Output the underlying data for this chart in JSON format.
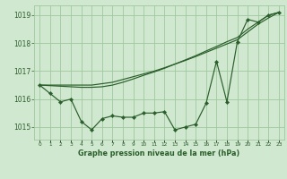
{
  "title": "Graphe pression niveau de la mer (hPa)",
  "background_color": "#d0e8d0",
  "grid_color": "#a0c8a0",
  "line_color": "#2a5e2a",
  "x_labels": [
    "0",
    "1",
    "2",
    "3",
    "4",
    "5",
    "6",
    "7",
    "8",
    "9",
    "10",
    "11",
    "12",
    "13",
    "14",
    "15",
    "16",
    "17",
    "18",
    "19",
    "20",
    "21",
    "22",
    "23"
  ],
  "hours": [
    0,
    1,
    2,
    3,
    4,
    5,
    6,
    7,
    8,
    9,
    10,
    11,
    12,
    13,
    14,
    15,
    16,
    17,
    18,
    19,
    20,
    21,
    22,
    23
  ],
  "pressure_main": [
    1016.5,
    1016.2,
    1015.9,
    1016.0,
    1015.2,
    1014.9,
    1015.3,
    1015.4,
    1015.35,
    1015.35,
    1015.5,
    1015.5,
    1015.55,
    1014.9,
    1015.0,
    1015.1,
    1015.85,
    1017.35,
    1015.9,
    1018.05,
    1018.85,
    1018.75,
    1019.0,
    1019.1
  ],
  "pressure_smooth1": [
    1016.5,
    1016.48,
    1016.46,
    1016.44,
    1016.42,
    1016.42,
    1016.44,
    1016.5,
    1016.6,
    1016.72,
    1016.85,
    1016.97,
    1017.1,
    1017.25,
    1017.4,
    1017.55,
    1017.72,
    1017.88,
    1018.05,
    1018.2,
    1018.5,
    1018.75,
    1019.0,
    1019.1
  ],
  "pressure_smooth2": [
    1016.5,
    1016.5,
    1016.5,
    1016.5,
    1016.5,
    1016.5,
    1016.55,
    1016.6,
    1016.7,
    1016.8,
    1016.9,
    1017.0,
    1017.12,
    1017.25,
    1017.38,
    1017.52,
    1017.67,
    1017.82,
    1017.97,
    1018.12,
    1018.4,
    1018.68,
    1018.9,
    1019.1
  ],
  "ylim_min": 1014.55,
  "ylim_max": 1019.35,
  "yticks": [
    1015,
    1016,
    1017,
    1018,
    1019
  ]
}
